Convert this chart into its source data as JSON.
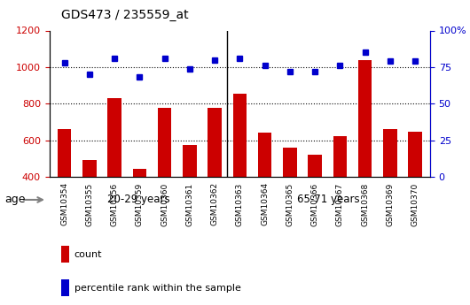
{
  "title": "GDS473 / 235559_at",
  "samples": [
    "GSM10354",
    "GSM10355",
    "GSM10356",
    "GSM10359",
    "GSM10360",
    "GSM10361",
    "GSM10362",
    "GSM10363",
    "GSM10364",
    "GSM10365",
    "GSM10366",
    "GSM10367",
    "GSM10368",
    "GSM10369",
    "GSM10370"
  ],
  "counts": [
    660,
    490,
    830,
    445,
    775,
    575,
    775,
    855,
    640,
    560,
    520,
    625,
    1040,
    660,
    645
  ],
  "percentiles": [
    78,
    70,
    81,
    68,
    81,
    74,
    80,
    81,
    76,
    72,
    72,
    76,
    85,
    79,
    79
  ],
  "group1_label": "20-29 years",
  "group1_count": 7,
  "group2_label": "65-71 years",
  "group2_count": 8,
  "age_label": "age",
  "left_ylim": [
    400,
    1200
  ],
  "right_ylim": [
    0,
    100
  ],
  "left_yticks": [
    400,
    600,
    800,
    1000,
    1200
  ],
  "right_yticks": [
    0,
    25,
    50,
    75,
    100
  ],
  "right_yticklabels": [
    "0",
    "25",
    "50",
    "75",
    "100%"
  ],
  "bar_color": "#cc0000",
  "dot_color": "#0000cc",
  "bg_color_plot": "#ffffff",
  "bg_color_group1": "#bbffbb",
  "bg_color_group2": "#44ee44",
  "legend_count_label": "count",
  "legend_pct_label": "percentile rank within the sample",
  "grid_dotted_at": [
    600,
    800,
    1000
  ],
  "sep_color": "#ffffff"
}
